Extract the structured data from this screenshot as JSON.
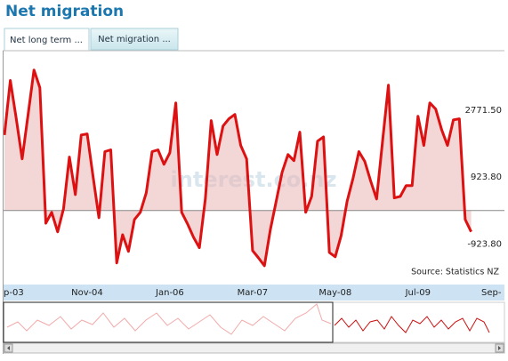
{
  "chart_data": {
    "type": "line",
    "title": "Net migration",
    "tabs": [
      "Net long term ...",
      "Net migration ..."
    ],
    "watermark": "interest.co.nz",
    "source": "Source: Statistics NZ",
    "categories": [
      "p-03",
      null,
      null,
      null,
      null,
      null,
      null,
      null,
      null,
      null,
      null,
      null,
      null,
      null,
      "Nov-04",
      null,
      null,
      null,
      null,
      null,
      null,
      null,
      null,
      null,
      null,
      null,
      null,
      null,
      "Jan-06",
      null,
      null,
      null,
      null,
      null,
      null,
      null,
      null,
      null,
      null,
      null,
      null,
      null,
      "Mar-07",
      null,
      null,
      null,
      null,
      null,
      null,
      null,
      null,
      null,
      null,
      null,
      null,
      null,
      "May-08",
      null,
      null,
      null,
      null,
      null,
      null,
      null,
      null,
      null,
      null,
      null,
      null,
      null,
      "Jul-09",
      null,
      null,
      null,
      null,
      null,
      null,
      null,
      null,
      null,
      null,
      null,
      null,
      null,
      "Sep-"
    ],
    "series": [
      {
        "name": "Net migration",
        "color": "#dd1111",
        "values": [
          2090,
          3600,
          2540,
          1430,
          2660,
          3890,
          3400,
          -350,
          -50,
          -590,
          50,
          1480,
          440,
          2090,
          2120,
          940,
          -200,
          1630,
          1680,
          -1450,
          -670,
          -1130,
          -250,
          -50,
          490,
          1630,
          1680,
          1280,
          1600,
          2980,
          -50,
          -370,
          -740,
          -1030,
          320,
          2490,
          1550,
          2340,
          2540,
          2660,
          1800,
          1430,
          -1110,
          -1310,
          -1530,
          -540,
          250,
          1060,
          1550,
          1380,
          2170,
          -50,
          390,
          1920,
          2040,
          -1160,
          -1280,
          -690,
          250,
          890,
          1630,
          1360,
          810,
          320,
          1920,
          3470,
          350,
          390,
          690,
          690,
          2610,
          1800,
          2980,
          2810,
          2240,
          1800,
          2510,
          2540,
          -250,
          -590,
          null,
          null,
          null,
          null,
          null
        ]
      }
    ],
    "ylim": [
      -2000,
      4400
    ],
    "yticks": [
      {
        "value": 2771.5,
        "label": "2771.50"
      },
      {
        "value": 923.8,
        "label": "923.80"
      },
      {
        "value": -923.8,
        "label": "-923.80"
      }
    ]
  }
}
